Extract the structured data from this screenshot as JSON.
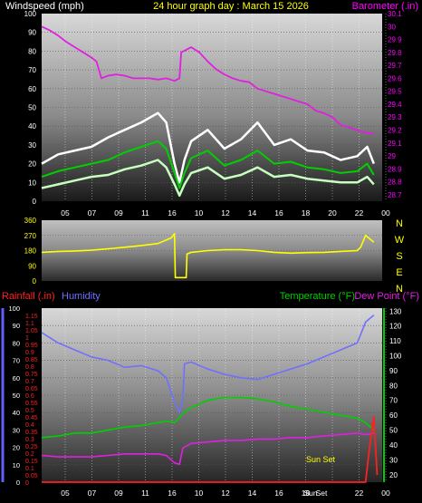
{
  "header": {
    "left_label": "Windspeed (mph)",
    "center_label": "24 hour graph day : March 15 2026",
    "right_label": "Barometer (.in)"
  },
  "colors": {
    "background": "#000000",
    "header_left": "#ffffff",
    "header_center": "#ffff00",
    "header_right": "#ff00ff",
    "wind_gust": "#ffffff",
    "wind_avg": "#00d000",
    "wind_min": "#c8ffc0",
    "barometer": "#e020e0",
    "direction": "#ffff00",
    "rainfall": "#ff2020",
    "humidity": "#7070ff",
    "temperature": "#00d000",
    "dew_point": "#e020e0",
    "axis_tick_green": "#00cc00",
    "axis_tick_blue": "#6060ff",
    "axis_tick_red": "#ff2020",
    "axis_tick_yellow": "#ffff00",
    "axis_tick_magenta": "#ff00ff"
  },
  "x_axis": {
    "hour_labels": [
      "05",
      "07",
      "09",
      "11",
      "16",
      "10",
      "12",
      "14",
      "16",
      "18",
      "20",
      "22",
      "00"
    ],
    "bottom_hour_labels": [
      "05",
      "07",
      "09",
      "11",
      "16",
      "10",
      "12",
      "14",
      "16",
      "18",
      "Sun",
      "Set",
      "22",
      "00"
    ]
  },
  "chart_data": [
    {
      "type": "line",
      "name_panel": "wind-barometer",
      "left_axis": {
        "label": "Windspeed (mph)",
        "ticks": [
          0,
          10,
          20,
          30,
          40,
          50,
          60,
          70,
          80,
          90,
          100
        ],
        "ylim": [
          0,
          100
        ]
      },
      "right_axis": {
        "label": "Barometer (.in)",
        "ticks": [
          "28.7",
          "28.8",
          "28.9",
          "29",
          "29.1",
          "29.2",
          "29.3",
          "29.4",
          "29.5",
          "29.6",
          "29.7",
          "29.8",
          "29.9",
          "30",
          "30.1"
        ],
        "ylim": [
          28.65,
          30.1
        ]
      },
      "x_hours": [
        4,
        24.5
      ],
      "series": [
        {
          "name": "Barometer",
          "axis": "right",
          "x": [
            4,
            4.5,
            5,
            5.5,
            6,
            6.5,
            7,
            7.3,
            7.6,
            8,
            8.5,
            9,
            9.5,
            10,
            10.5,
            11,
            11.5,
            12,
            12.3,
            12.4,
            13,
            13.5,
            14,
            14.5,
            15,
            15.5,
            16,
            16.5,
            17,
            17.5,
            18,
            18.5,
            19,
            19.5,
            20,
            20.5,
            21,
            21.5,
            22,
            22.5,
            23,
            23.5,
            24
          ],
          "values": [
            30.0,
            29.97,
            29.93,
            29.88,
            29.84,
            29.8,
            29.76,
            29.73,
            29.6,
            29.62,
            29.63,
            29.62,
            29.6,
            29.6,
            29.6,
            29.59,
            29.6,
            29.58,
            29.6,
            29.8,
            29.84,
            29.8,
            29.73,
            29.67,
            29.63,
            29.6,
            29.58,
            29.57,
            29.52,
            29.5,
            29.48,
            29.46,
            29.44,
            29.42,
            29.4,
            29.35,
            29.33,
            29.3,
            29.24,
            29.22,
            29.2,
            29.18,
            29.17
          ]
        },
        {
          "name": "Gust",
          "axis": "left",
          "x": [
            4,
            5,
            6,
            7,
            8,
            9,
            10,
            11,
            11.5,
            12,
            12.3,
            12.6,
            13,
            14,
            15,
            16,
            17,
            18,
            19,
            20,
            21,
            22,
            23,
            23.6,
            24
          ],
          "values": [
            20,
            25,
            27,
            29,
            34,
            38,
            42,
            47,
            42,
            20,
            10,
            22,
            32,
            38,
            28,
            33,
            42,
            30,
            33,
            27,
            26,
            22,
            24,
            29,
            20
          ]
        },
        {
          "name": "Average",
          "axis": "left",
          "x": [
            4,
            5,
            6,
            7,
            8,
            9,
            10,
            11,
            11.5,
            12,
            12.3,
            12.6,
            13,
            14,
            15,
            16,
            17,
            18,
            19,
            20,
            21,
            22,
            23,
            23.6,
            24
          ],
          "values": [
            13,
            16,
            18,
            20,
            22,
            26,
            29,
            32,
            28,
            15,
            7,
            15,
            23,
            27,
            19,
            22,
            27,
            20,
            21,
            18,
            17,
            15,
            16,
            20,
            14
          ]
        },
        {
          "name": "Minimum",
          "axis": "left",
          "x": [
            4,
            5,
            6,
            7,
            8,
            9,
            10,
            11,
            11.5,
            12,
            12.3,
            12.6,
            13,
            14,
            15,
            16,
            17,
            18,
            19,
            20,
            21,
            22,
            23,
            23.6,
            24
          ],
          "values": [
            7,
            9,
            11,
            13,
            14,
            17,
            19,
            22,
            18,
            9,
            3,
            9,
            15,
            18,
            12,
            14,
            18,
            13,
            14,
            12,
            11,
            10,
            10,
            13,
            9
          ]
        }
      ]
    },
    {
      "type": "line",
      "name_panel": "wind-direction",
      "left_axis": {
        "ticks": [
          0,
          90,
          180,
          270,
          360
        ],
        "ylim": [
          0,
          360
        ]
      },
      "right_axis": {
        "labels": [
          "N",
          "W",
          "S",
          "E",
          "N"
        ]
      },
      "x_hours": [
        4,
        24.5
      ],
      "series": [
        {
          "name": "Direction",
          "x": [
            4,
            5,
            6,
            7,
            8,
            9,
            10,
            11,
            11.8,
            12,
            12.05,
            12.7,
            12.75,
            13,
            14,
            15,
            16,
            17,
            18,
            19,
            20,
            21,
            22,
            23,
            23.2,
            23.5,
            24
          ],
          "values": [
            170,
            175,
            178,
            182,
            190,
            200,
            210,
            222,
            255,
            280,
            20,
            20,
            160,
            170,
            180,
            185,
            185,
            180,
            170,
            165,
            168,
            170,
            175,
            180,
            200,
            270,
            230
          ]
        }
      ]
    },
    {
      "type": "line",
      "name_panel": "rain-humidity-temperature",
      "left_axis_humidity": {
        "label": "Humidity",
        "ticks": [
          0,
          10,
          20,
          30,
          40,
          50,
          60,
          70,
          80,
          90,
          100
        ],
        "ylim": [
          0,
          100
        ]
      },
      "left_axis_rain": {
        "label": "Rainfall (.in)",
        "ticks": [
          "0",
          "0.05",
          "0.1",
          "0.15",
          "0.2",
          "0.25",
          "0.3",
          "0.35",
          "0.4",
          "0.45",
          "0.5",
          "0.55",
          "0.6",
          "0.65",
          "0.7",
          "0.75",
          "0.8",
          "0.85",
          "0.9",
          "0.95",
          "1",
          "1.05",
          "1.1",
          "1.15"
        ],
        "ylim": [
          0,
          1.2
        ]
      },
      "right_axis": {
        "label_temp": "Temperature (°F)",
        "label_dew": "Dew Point (°F)",
        "ticks": [
          20,
          30,
          40,
          50,
          60,
          70,
          80,
          90,
          100,
          110,
          120,
          130
        ],
        "ylim": [
          15,
          132
        ]
      },
      "annotation": "Sun Set",
      "x_hours": [
        4,
        24.5
      ],
      "series": [
        {
          "name": "Humidity",
          "axis": "humidity",
          "x": [
            4,
            5,
            6,
            7,
            8,
            9,
            10,
            11,
            11.5,
            12,
            12.3,
            12.5,
            12.6,
            13,
            14,
            15,
            16,
            17,
            18,
            19,
            20,
            21,
            22,
            23,
            23.5,
            24
          ],
          "values": [
            86,
            80,
            76,
            72,
            70,
            66,
            67,
            64,
            60,
            46,
            40,
            48,
            68,
            69,
            65,
            62,
            60,
            59,
            62,
            65,
            68,
            72,
            76,
            80,
            92,
            96
          ]
        },
        {
          "name": "Temperature",
          "axis": "temp",
          "x": [
            4,
            5,
            6,
            7,
            8,
            9,
            10,
            11,
            11.5,
            12,
            12.5,
            13,
            14,
            15,
            16,
            17,
            18,
            19,
            20,
            21,
            22,
            23,
            23.5,
            24
          ],
          "values": [
            45,
            46,
            48,
            48,
            50,
            52,
            53,
            55,
            56,
            55,
            61,
            65,
            70,
            72,
            72,
            71,
            69,
            66,
            64,
            62,
            60,
            58,
            55,
            50
          ]
        },
        {
          "name": "Dew Point",
          "axis": "temp",
          "x": [
            4,
            5,
            6,
            7,
            8,
            9,
            10,
            11,
            11.5,
            12,
            12.3,
            12.5,
            13,
            14,
            15,
            16,
            17,
            18,
            19,
            20,
            21,
            22,
            23,
            23.5,
            24
          ],
          "values": [
            33,
            32,
            32,
            32,
            33,
            34,
            34,
            34,
            33,
            28,
            27,
            38,
            41,
            42,
            43,
            43,
            44,
            44,
            45,
            45,
            46,
            47,
            48,
            47,
            48
          ]
        },
        {
          "name": "Rainfall",
          "axis": "rain",
          "x": [
            4,
            8,
            12,
            16,
            20,
            22.5,
            23,
            23.5,
            23.8,
            24,
            24.2
          ],
          "values": [
            0,
            0,
            0,
            0,
            0,
            0,
            0,
            0,
            0.3,
            0.45,
            0.05
          ]
        }
      ]
    }
  ]
}
